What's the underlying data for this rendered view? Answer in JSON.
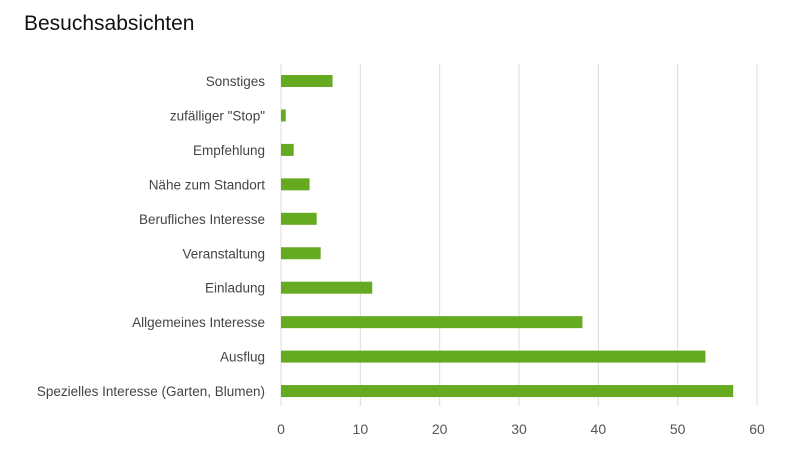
{
  "chart_data": {
    "type": "bar",
    "orientation": "horizontal",
    "title": "Besuchsabsichten",
    "xlabel": "",
    "ylabel": "",
    "categories": [
      "Sonstiges",
      "zufälliger \"Stop\"",
      "Empfehlung",
      "Nähe zum Standort",
      "Berufliches Interesse",
      "Veranstaltung",
      "Einladung",
      "Allgemeines Interesse",
      "Ausflug",
      "Spezielles Interesse (Garten, Blumen)"
    ],
    "values": [
      6.5,
      0.6,
      1.6,
      3.6,
      4.5,
      5.0,
      11.5,
      38.0,
      53.5,
      57.0
    ],
    "xlim": [
      0,
      60
    ],
    "xticks": [
      "0",
      "10",
      "20",
      "30",
      "40",
      "50",
      "60"
    ],
    "grid": true,
    "bar_color": "#66aa22",
    "grid_color": "#dcdcdc"
  }
}
